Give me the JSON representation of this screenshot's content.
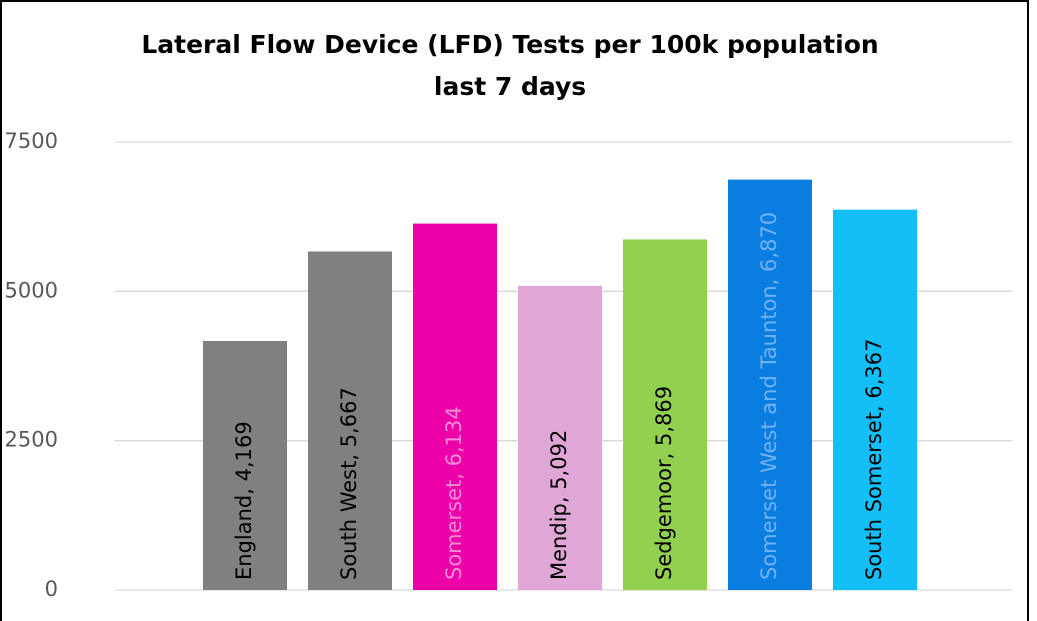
{
  "chart_data": {
    "type": "bar",
    "title": [
      "Lateral Flow Device (LFD) Tests per 100k population",
      "last 7 days"
    ],
    "categories": [
      "England",
      "South West",
      "Somerset",
      "Mendip",
      "Sedgemoor",
      "Somerset West and Taunton",
      "South Somerset"
    ],
    "values": [
      4169,
      5667,
      6134,
      5092,
      5869,
      6870,
      6367
    ],
    "value_labels": [
      ",  4,169",
      ", 5,667",
      ", 6,134",
      ", 5,092",
      ", 5,869",
      ", 6,870",
      ", 6,367"
    ],
    "colors": [
      "#808080",
      "#808080",
      "#ec00a8",
      "#dfa6d6",
      "#92d050",
      "#0a7de0",
      "#14bff8"
    ],
    "label_colors": [
      "#000000",
      "#000000",
      "#f58ad4",
      "#000000",
      "#000000",
      "#6fb3f5",
      "#000000"
    ],
    "ylim": [
      0,
      7500
    ],
    "yticks": [
      0,
      2500,
      5000,
      7500
    ],
    "grid": true
  }
}
